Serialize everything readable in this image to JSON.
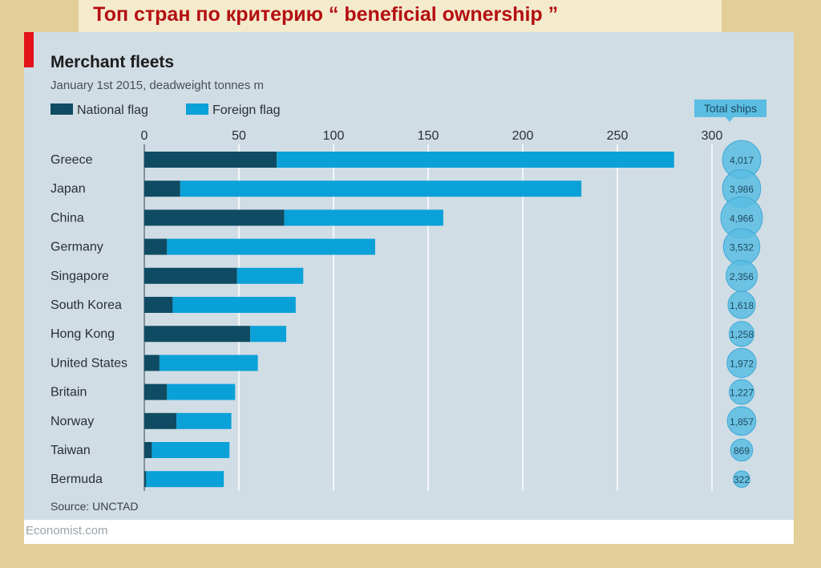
{
  "slide_title": "Топ стран по критерию “ beneficial ownership ”",
  "footer": "Economist.com",
  "colors": {
    "national": "#0f4c63",
    "foreign": "#0aa1d8",
    "bubble": "#5bbde3",
    "title_red": "#b40f12"
  },
  "chart_data": {
    "type": "bar",
    "stacked": true,
    "orientation": "horizontal",
    "title": "Merchant fleets",
    "subtitle": "January 1st 2015, deadweight tonnes m",
    "source": "Source: UNCTAD",
    "legend": [
      "National flag",
      "Foreign flag"
    ],
    "legend_placement": "top-left",
    "xlim": [
      0,
      300
    ],
    "xticks": [
      0,
      50,
      100,
      150,
      200,
      250,
      300
    ],
    "grid": true,
    "categories": [
      "Greece",
      "Japan",
      "China",
      "Germany",
      "Singapore",
      "South Korea",
      "Hong Kong",
      "United States",
      "Britain",
      "Norway",
      "Taiwan",
      "Bermuda"
    ],
    "series": [
      {
        "name": "National flag",
        "values": [
          70,
          19,
          74,
          12,
          49,
          15,
          56,
          8,
          12,
          17,
          4,
          1
        ]
      },
      {
        "name": "Foreign flag",
        "values": [
          210,
          212,
          84,
          110,
          35,
          65,
          19,
          52,
          36,
          29,
          41,
          41
        ]
      }
    ],
    "total_ships_label": "Total ships",
    "total_ships": [
      "4,017",
      "3,986",
      "4,966",
      "3,532",
      "2,356",
      "1,618",
      "1,258",
      "1,972",
      "1,227",
      "1,857",
      "869",
      "322"
    ],
    "total_ships_values": [
      4017,
      3986,
      4966,
      3532,
      2356,
      1618,
      1258,
      1972,
      1227,
      1857,
      869,
      322
    ]
  }
}
